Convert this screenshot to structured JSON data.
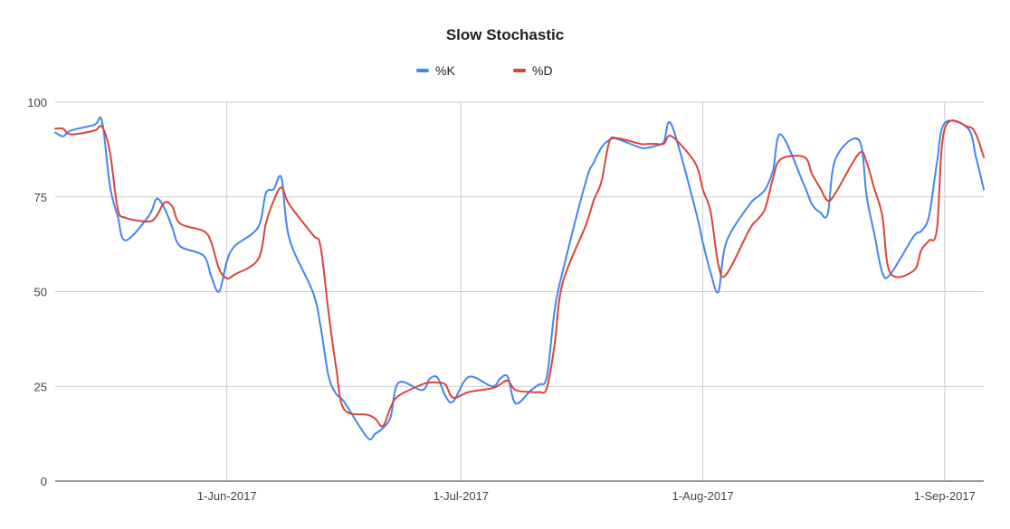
{
  "chart_data": {
    "type": "line",
    "title": "Slow Stochastic",
    "xlabel": "",
    "ylabel": "",
    "ylim": [
      0,
      100
    ],
    "yticks": [
      0,
      25,
      50,
      75,
      100
    ],
    "x_range": [
      "2017-05-10",
      "2017-09-06"
    ],
    "xticks": [
      {
        "date": "2017-06-01",
        "label": "1-Jun-2017"
      },
      {
        "date": "2017-07-01",
        "label": "1-Jul-2017"
      },
      {
        "date": "2017-08-01",
        "label": "1-Aug-2017"
      },
      {
        "date": "2017-09-01",
        "label": "1-Sep-2017"
      }
    ],
    "grid": true,
    "legend_position": "top",
    "series": [
      {
        "name": "%K",
        "color": "#4285f4",
        "points": [
          [
            "2017-05-10",
            92
          ],
          [
            "2017-05-11",
            91
          ],
          [
            "2017-05-12",
            92.5
          ],
          [
            "2017-05-15",
            94
          ],
          [
            "2017-05-16",
            95
          ],
          [
            "2017-05-17",
            78
          ],
          [
            "2017-05-18",
            70
          ],
          [
            "2017-05-19",
            63.5
          ],
          [
            "2017-05-22",
            70
          ],
          [
            "2017-05-23",
            74.5
          ],
          [
            "2017-05-24",
            72
          ],
          [
            "2017-05-25",
            67
          ],
          [
            "2017-05-26",
            62
          ],
          [
            "2017-05-29",
            59.5
          ],
          [
            "2017-05-30",
            54
          ],
          [
            "2017-05-31",
            50
          ],
          [
            "2017-06-01",
            58
          ],
          [
            "2017-06-02",
            62
          ],
          [
            "2017-06-05",
            67
          ],
          [
            "2017-06-06",
            76
          ],
          [
            "2017-06-07",
            77
          ],
          [
            "2017-06-08",
            80
          ],
          [
            "2017-06-09",
            64
          ],
          [
            "2017-06-12",
            50
          ],
          [
            "2017-06-13",
            41
          ],
          [
            "2017-06-14",
            28
          ],
          [
            "2017-06-15",
            23
          ],
          [
            "2017-06-16",
            21
          ],
          [
            "2017-06-19",
            11.5
          ],
          [
            "2017-06-20",
            12.5
          ],
          [
            "2017-06-21",
            14
          ],
          [
            "2017-06-22",
            17
          ],
          [
            "2017-06-23",
            26
          ],
          [
            "2017-06-26",
            24
          ],
          [
            "2017-06-27",
            27
          ],
          [
            "2017-06-28",
            27.3
          ],
          [
            "2017-06-29",
            22.5
          ],
          [
            "2017-06-30",
            21
          ],
          [
            "2017-07-02",
            27.5
          ],
          [
            "2017-07-05",
            25
          ],
          [
            "2017-07-06",
            27
          ],
          [
            "2017-07-07",
            27.5
          ],
          [
            "2017-07-08",
            20.5
          ],
          [
            "2017-07-10",
            24
          ],
          [
            "2017-07-11",
            25.5
          ],
          [
            "2017-07-12",
            27.5
          ],
          [
            "2017-07-13",
            45
          ],
          [
            "2017-07-14",
            55
          ],
          [
            "2017-07-17",
            79
          ],
          [
            "2017-07-18",
            84
          ],
          [
            "2017-07-19",
            88
          ],
          [
            "2017-07-20",
            90
          ],
          [
            "2017-07-21",
            90.3
          ],
          [
            "2017-07-24",
            88
          ],
          [
            "2017-07-25",
            88
          ],
          [
            "2017-07-26",
            88.5
          ],
          [
            "2017-07-27",
            89.5
          ],
          [
            "2017-07-28",
            94
          ],
          [
            "2017-07-31",
            72
          ],
          [
            "2017-08-01",
            63
          ],
          [
            "2017-08-02",
            55
          ],
          [
            "2017-08-03",
            50
          ],
          [
            "2017-08-04",
            63
          ],
          [
            "2017-08-07",
            73
          ],
          [
            "2017-08-08",
            75
          ],
          [
            "2017-08-09",
            77
          ],
          [
            "2017-08-10",
            82
          ],
          [
            "2017-08-11",
            91.5
          ],
          [
            "2017-08-14",
            78
          ],
          [
            "2017-08-15",
            73
          ],
          [
            "2017-08-16",
            71
          ],
          [
            "2017-08-17",
            70.5
          ],
          [
            "2017-08-18",
            85
          ],
          [
            "2017-08-21",
            90
          ],
          [
            "2017-08-22",
            75
          ],
          [
            "2017-08-23",
            65
          ],
          [
            "2017-08-24",
            55
          ],
          [
            "2017-08-25",
            54.5
          ],
          [
            "2017-08-28",
            64.5
          ],
          [
            "2017-08-29",
            66
          ],
          [
            "2017-08-30",
            70
          ],
          [
            "2017-08-31",
            84
          ],
          [
            "2017-09-01",
            94.5
          ],
          [
            "2017-09-04",
            93
          ],
          [
            "2017-09-05",
            85.5
          ],
          [
            "2017-09-06",
            77
          ]
        ]
      },
      {
        "name": "%D",
        "color": "#db4437",
        "points": [
          [
            "2017-05-10",
            93
          ],
          [
            "2017-05-11",
            93
          ],
          [
            "2017-05-12",
            91.5
          ],
          [
            "2017-05-15",
            92.5
          ],
          [
            "2017-05-16",
            93.5
          ],
          [
            "2017-05-17",
            87
          ],
          [
            "2017-05-18",
            72
          ],
          [
            "2017-05-19",
            69.5
          ],
          [
            "2017-05-22",
            68.5
          ],
          [
            "2017-05-23",
            70
          ],
          [
            "2017-05-24",
            73.5
          ],
          [
            "2017-05-25",
            72.5
          ],
          [
            "2017-05-26",
            68
          ],
          [
            "2017-05-29",
            66
          ],
          [
            "2017-05-30",
            63
          ],
          [
            "2017-05-31",
            56
          ],
          [
            "2017-06-01",
            53.5
          ],
          [
            "2017-06-02",
            54.5
          ],
          [
            "2017-06-05",
            58.5
          ],
          [
            "2017-06-06",
            68
          ],
          [
            "2017-06-07",
            74
          ],
          [
            "2017-06-08",
            77.5
          ],
          [
            "2017-06-09",
            73
          ],
          [
            "2017-06-12",
            65
          ],
          [
            "2017-06-13",
            62
          ],
          [
            "2017-06-14",
            45
          ],
          [
            "2017-06-15",
            30
          ],
          [
            "2017-06-16",
            19
          ],
          [
            "2017-06-19",
            17.5
          ],
          [
            "2017-06-20",
            16.5
          ],
          [
            "2017-06-21",
            14.5
          ],
          [
            "2017-06-22",
            19.5
          ],
          [
            "2017-06-23",
            22.5
          ],
          [
            "2017-06-26",
            25.5
          ],
          [
            "2017-06-27",
            26
          ],
          [
            "2017-06-28",
            26
          ],
          [
            "2017-06-29",
            25.5
          ],
          [
            "2017-06-30",
            22
          ],
          [
            "2017-07-02",
            23.5
          ],
          [
            "2017-07-05",
            24.5
          ],
          [
            "2017-07-06",
            25.5
          ],
          [
            "2017-07-07",
            26.5
          ],
          [
            "2017-07-08",
            24
          ],
          [
            "2017-07-10",
            23.5
          ],
          [
            "2017-07-11",
            23.5
          ],
          [
            "2017-07-12",
            24.5
          ],
          [
            "2017-07-13",
            36
          ],
          [
            "2017-07-14",
            52
          ],
          [
            "2017-07-17",
            67.5
          ],
          [
            "2017-07-18",
            74
          ],
          [
            "2017-07-19",
            79
          ],
          [
            "2017-07-20",
            89.5
          ],
          [
            "2017-07-21",
            90.5
          ],
          [
            "2017-07-24",
            89
          ],
          [
            "2017-07-25",
            89
          ],
          [
            "2017-07-26",
            89
          ],
          [
            "2017-07-27",
            89
          ],
          [
            "2017-07-28",
            91
          ],
          [
            "2017-07-31",
            84
          ],
          [
            "2017-08-01",
            77
          ],
          [
            "2017-08-02",
            71
          ],
          [
            "2017-08-03",
            57
          ],
          [
            "2017-08-04",
            54.5
          ],
          [
            "2017-08-07",
            66.5
          ],
          [
            "2017-08-08",
            69
          ],
          [
            "2017-08-09",
            72
          ],
          [
            "2017-08-10",
            80
          ],
          [
            "2017-08-11",
            85
          ],
          [
            "2017-08-14",
            85.5
          ],
          [
            "2017-08-15",
            81
          ],
          [
            "2017-08-16",
            77.5
          ],
          [
            "2017-08-17",
            74
          ],
          [
            "2017-08-18",
            76
          ],
          [
            "2017-08-21",
            86.5
          ],
          [
            "2017-08-22",
            84
          ],
          [
            "2017-08-23",
            77
          ],
          [
            "2017-08-24",
            70
          ],
          [
            "2017-08-25",
            55
          ],
          [
            "2017-08-28",
            55.5
          ],
          [
            "2017-08-29",
            61
          ],
          [
            "2017-08-30",
            63.5
          ],
          [
            "2017-08-31",
            66.5
          ],
          [
            "2017-09-01",
            93
          ],
          [
            "2017-09-04",
            93.5
          ],
          [
            "2017-09-05",
            91.5
          ],
          [
            "2017-09-06",
            85.5
          ]
        ]
      }
    ]
  }
}
